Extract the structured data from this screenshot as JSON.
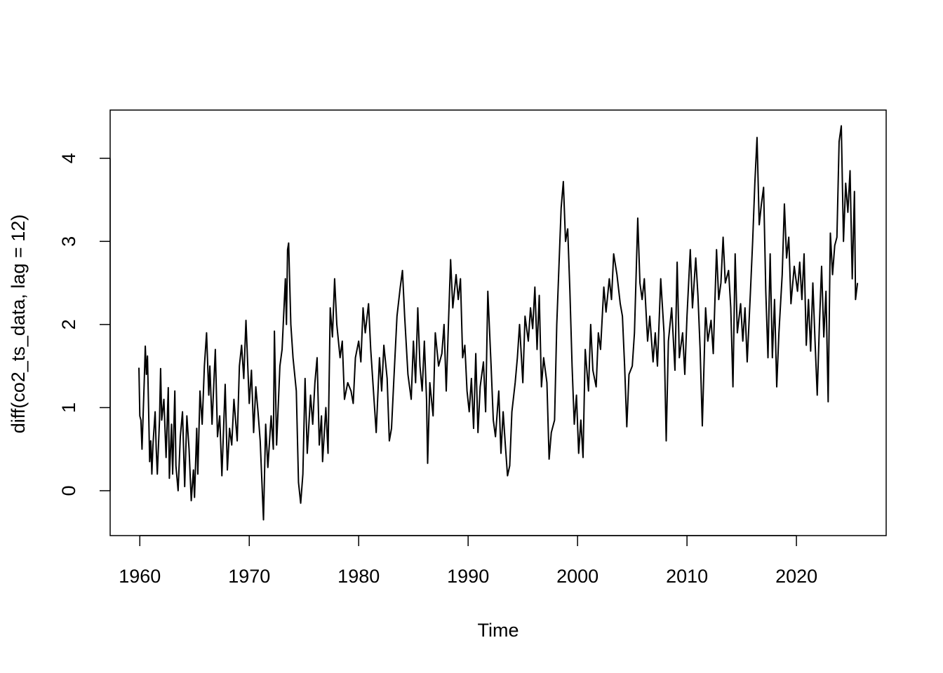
{
  "chart_data": {
    "type": "line",
    "x_label": "Time",
    "y_label": "diff(co2_ts_data, lag = 12)",
    "xlim": [
      1957.29,
      2028.2
    ],
    "ylim": [
      -0.54,
      4.58
    ],
    "xticks": [
      1960,
      1970,
      1980,
      1990,
      2000,
      2010,
      2020
    ],
    "yticks": [
      0,
      1,
      2,
      3,
      4
    ],
    "grid": false,
    "color": "#000000",
    "x": [
      1959.92,
      1960.0,
      1960.1,
      1960.2,
      1960.4,
      1960.5,
      1960.6,
      1960.7,
      1960.8,
      1960.9,
      1961.0,
      1961.1,
      1961.2,
      1961.4,
      1961.5,
      1961.6,
      1961.8,
      1961.9,
      1962.0,
      1962.2,
      1962.4,
      1962.6,
      1962.7,
      1962.9,
      1963.0,
      1963.2,
      1963.3,
      1963.5,
      1963.7,
      1963.9,
      1964.1,
      1964.3,
      1964.5,
      1964.7,
      1964.9,
      1965.0,
      1965.2,
      1965.3,
      1965.5,
      1965.7,
      1965.9,
      1966.1,
      1966.3,
      1966.4,
      1966.6,
      1966.9,
      1967.1,
      1967.3,
      1967.5,
      1967.8,
      1968.0,
      1968.2,
      1968.4,
      1968.6,
      1968.9,
      1969.1,
      1969.3,
      1969.5,
      1969.7,
      1970.0,
      1970.2,
      1970.4,
      1970.6,
      1970.8,
      1971.0,
      1971.3,
      1971.5,
      1971.7,
      1972.0,
      1972.2,
      1972.3,
      1972.5,
      1972.8,
      1973.0,
      1973.3,
      1973.4,
      1973.5,
      1973.6,
      1973.8,
      1974.0,
      1974.3,
      1974.5,
      1974.7,
      1974.9,
      1975.1,
      1975.3,
      1975.6,
      1975.8,
      1976.0,
      1976.2,
      1976.4,
      1976.6,
      1976.7,
      1977.0,
      1977.2,
      1977.4,
      1977.6,
      1977.8,
      1978.0,
      1978.3,
      1978.5,
      1978.7,
      1979.0,
      1979.3,
      1979.5,
      1979.7,
      1980.0,
      1980.2,
      1980.4,
      1980.6,
      1980.9,
      1981.1,
      1981.4,
      1981.6,
      1981.9,
      1982.1,
      1982.3,
      1982.6,
      1982.8,
      1983.0,
      1983.2,
      1983.5,
      1983.8,
      1984.0,
      1984.2,
      1984.5,
      1984.8,
      1985.0,
      1985.2,
      1985.4,
      1985.6,
      1985.8,
      1986.0,
      1986.2,
      1986.3,
      1986.5,
      1986.8,
      1987.0,
      1987.3,
      1987.6,
      1987.8,
      1988.0,
      1988.2,
      1988.4,
      1988.6,
      1988.9,
      1989.1,
      1989.3,
      1989.5,
      1989.7,
      1989.9,
      1990.1,
      1990.3,
      1990.5,
      1990.7,
      1990.9,
      1991.1,
      1991.4,
      1991.6,
      1991.8,
      1992.1,
      1992.3,
      1992.5,
      1992.8,
      1993.0,
      1993.2,
      1993.4,
      1993.6,
      1993.8,
      1994.0,
      1994.3,
      1994.5,
      1994.7,
      1995.0,
      1995.2,
      1995.5,
      1995.7,
      1995.9,
      1996.1,
      1996.3,
      1996.5,
      1996.7,
      1996.9,
      1997.2,
      1997.4,
      1997.6,
      1997.9,
      1998.1,
      1998.3,
      1998.5,
      1998.7,
      1998.9,
      1999.1,
      1999.3,
      1999.5,
      1999.7,
      1999.9,
      2000.1,
      2000.3,
      2000.5,
      2000.7,
      2001.0,
      2001.2,
      2001.4,
      2001.7,
      2001.9,
      2002.1,
      2002.4,
      2002.6,
      2002.9,
      2003.1,
      2003.3,
      2003.6,
      2003.9,
      2004.1,
      2004.3,
      2004.5,
      2004.7,
      2005.0,
      2005.2,
      2005.5,
      2005.7,
      2005.9,
      2006.1,
      2006.4,
      2006.6,
      2006.9,
      2007.1,
      2007.3,
      2007.6,
      2007.9,
      2008.1,
      2008.3,
      2008.6,
      2008.9,
      2009.1,
      2009.3,
      2009.6,
      2009.8,
      2010.0,
      2010.3,
      2010.5,
      2010.8,
      2011.0,
      2011.2,
      2011.4,
      2011.7,
      2011.9,
      2012.2,
      2012.4,
      2012.7,
      2012.9,
      2013.1,
      2013.3,
      2013.5,
      2013.8,
      2014.0,
      2014.2,
      2014.4,
      2014.6,
      2014.9,
      2015.1,
      2015.3,
      2015.5,
      2015.8,
      2016.0,
      2016.2,
      2016.4,
      2016.6,
      2016.8,
      2017.0,
      2017.2,
      2017.4,
      2017.6,
      2017.8,
      2018.0,
      2018.2,
      2018.4,
      2018.7,
      2018.9,
      2019.1,
      2019.3,
      2019.5,
      2019.8,
      2020.1,
      2020.3,
      2020.5,
      2020.7,
      2020.9,
      2021.1,
      2021.3,
      2021.5,
      2021.7,
      2021.9,
      2022.1,
      2022.3,
      2022.5,
      2022.7,
      2022.9,
      2023.1,
      2023.3,
      2023.5,
      2023.7,
      2023.9,
      2024.1,
      2024.3,
      2024.5,
      2024.7,
      2024.9,
      2025.1,
      2025.3,
      2025.4,
      2025.58
    ],
    "values": [
      1.48,
      0.9,
      0.85,
      0.5,
      1.3,
      1.74,
      1.4,
      1.62,
      1.0,
      0.35,
      0.6,
      0.2,
      0.55,
      0.95,
      0.5,
      0.2,
      0.85,
      1.47,
      0.85,
      1.1,
      0.4,
      1.24,
      0.15,
      0.8,
      0.2,
      1.2,
      0.3,
      0.0,
      0.65,
      0.95,
      0.05,
      0.9,
      0.5,
      -0.12,
      0.25,
      -0.08,
      0.75,
      0.2,
      1.2,
      0.8,
      1.5,
      1.9,
      1.15,
      1.5,
      0.8,
      1.7,
      0.65,
      0.9,
      0.18,
      1.28,
      0.25,
      0.75,
      0.55,
      1.1,
      0.6,
      1.5,
      1.75,
      1.35,
      2.05,
      1.05,
      1.45,
      0.7,
      1.25,
      0.95,
      0.6,
      -0.35,
      0.8,
      0.28,
      0.9,
      0.5,
      1.92,
      0.55,
      1.5,
      1.7,
      2.55,
      2.0,
      2.9,
      2.98,
      2.0,
      1.6,
      1.2,
      0.1,
      -0.15,
      0.2,
      1.35,
      0.45,
      1.15,
      0.8,
      1.3,
      1.6,
      0.55,
      0.9,
      0.35,
      1.0,
      0.45,
      2.2,
      1.85,
      2.55,
      2.0,
      1.6,
      1.8,
      1.1,
      1.3,
      1.2,
      1.05,
      1.6,
      1.8,
      1.55,
      2.2,
      1.9,
      2.25,
      1.7,
      1.1,
      0.7,
      1.6,
      1.2,
      1.75,
      1.35,
      0.6,
      0.75,
      1.3,
      2.1,
      2.45,
      2.65,
      2.1,
      1.4,
      1.1,
      1.8,
      1.3,
      2.2,
      1.5,
      1.2,
      1.8,
      1.1,
      0.33,
      1.3,
      0.9,
      1.9,
      1.5,
      1.65,
      2.0,
      1.2,
      2.0,
      2.78,
      2.2,
      2.6,
      2.3,
      2.55,
      1.6,
      1.75,
      1.2,
      0.95,
      1.35,
      0.75,
      1.65,
      0.7,
      1.25,
      1.55,
      0.95,
      2.4,
      1.5,
      0.85,
      0.65,
      1.2,
      0.45,
      0.95,
      0.55,
      0.18,
      0.3,
      0.95,
      1.3,
      1.6,
      2.0,
      1.3,
      2.1,
      1.8,
      2.2,
      1.95,
      2.45,
      1.7,
      2.35,
      1.25,
      1.6,
      1.3,
      0.38,
      0.7,
      0.85,
      2.0,
      2.7,
      3.4,
      3.72,
      3.0,
      3.15,
      2.4,
      1.5,
      0.8,
      1.15,
      0.45,
      0.85,
      0.4,
      1.7,
      1.2,
      2.0,
      1.45,
      1.25,
      1.9,
      1.7,
      2.45,
      2.15,
      2.55,
      2.3,
      2.85,
      2.6,
      2.25,
      2.1,
      1.5,
      0.77,
      1.4,
      1.5,
      1.9,
      3.28,
      2.5,
      2.3,
      2.55,
      1.8,
      2.1,
      1.55,
      1.9,
      1.5,
      2.55,
      1.9,
      0.6,
      1.8,
      2.2,
      1.45,
      2.75,
      1.6,
      1.9,
      1.4,
      2.1,
      2.9,
      2.2,
      2.8,
      2.35,
      1.7,
      0.78,
      2.2,
      1.8,
      2.05,
      1.65,
      2.9,
      2.3,
      2.5,
      3.05,
      2.5,
      2.65,
      2.2,
      1.25,
      2.85,
      1.9,
      2.25,
      1.8,
      2.2,
      1.55,
      2.4,
      3.0,
      3.7,
      4.25,
      3.2,
      3.45,
      3.65,
      2.4,
      1.6,
      2.85,
      1.6,
      2.3,
      1.25,
      1.9,
      2.6,
      3.45,
      2.8,
      3.05,
      2.25,
      2.7,
      2.4,
      2.75,
      2.3,
      2.85,
      1.75,
      2.3,
      1.68,
      2.5,
      1.8,
      1.15,
      2.0,
      2.7,
      1.85,
      2.4,
      1.07,
      3.1,
      2.6,
      2.95,
      3.05,
      4.2,
      4.39,
      3.0,
      3.7,
      3.35,
      3.85,
      2.55,
      3.6,
      2.3,
      2.5
    ]
  }
}
